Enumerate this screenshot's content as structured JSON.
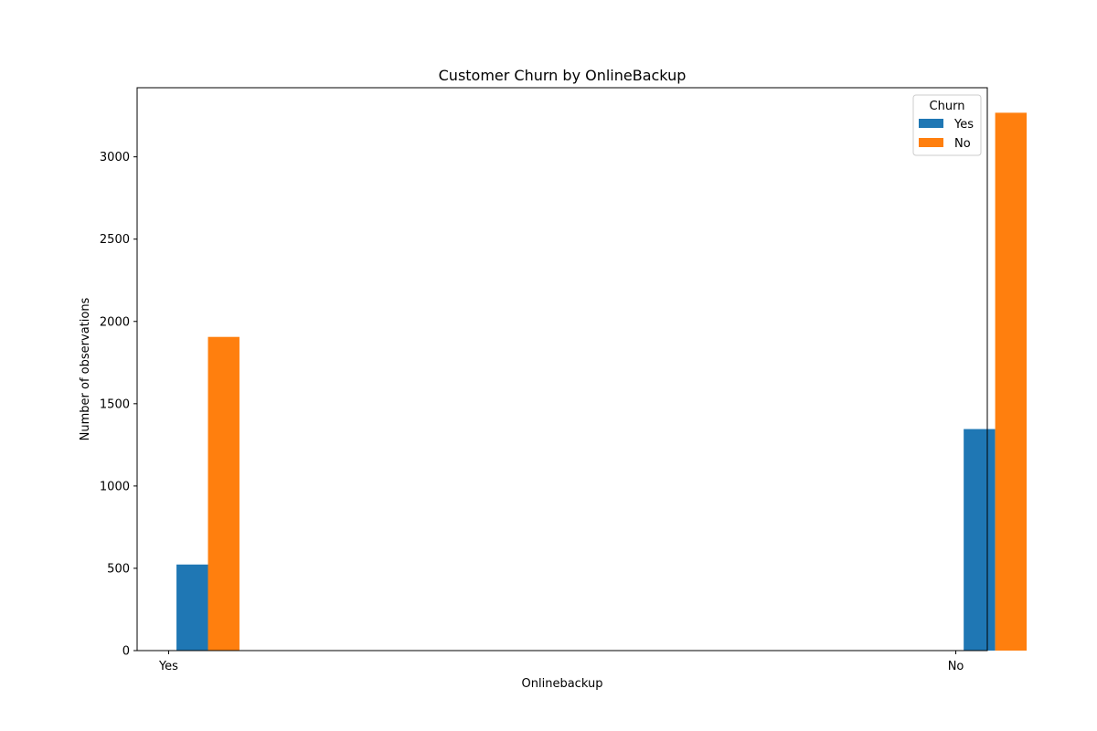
{
  "chart_data": {
    "type": "bar",
    "title": "Customer Churn by OnlineBackup",
    "xlabel": "Onlinebackup",
    "ylabel": "Number of observations",
    "categories": [
      "Yes",
      "No"
    ],
    "series": [
      {
        "name": "Yes",
        "color": "#1f77b4",
        "values": [
          523,
          1346
        ]
      },
      {
        "name": "No",
        "color": "#ff7f0e",
        "values": [
          1906,
          3268
        ]
      }
    ],
    "ylim": [
      0,
      3420
    ],
    "yticks": [
      0,
      500,
      1000,
      1500,
      2000,
      2500,
      3000
    ],
    "legend": {
      "title": "Churn",
      "placement": "top-right"
    },
    "grid": false
  }
}
